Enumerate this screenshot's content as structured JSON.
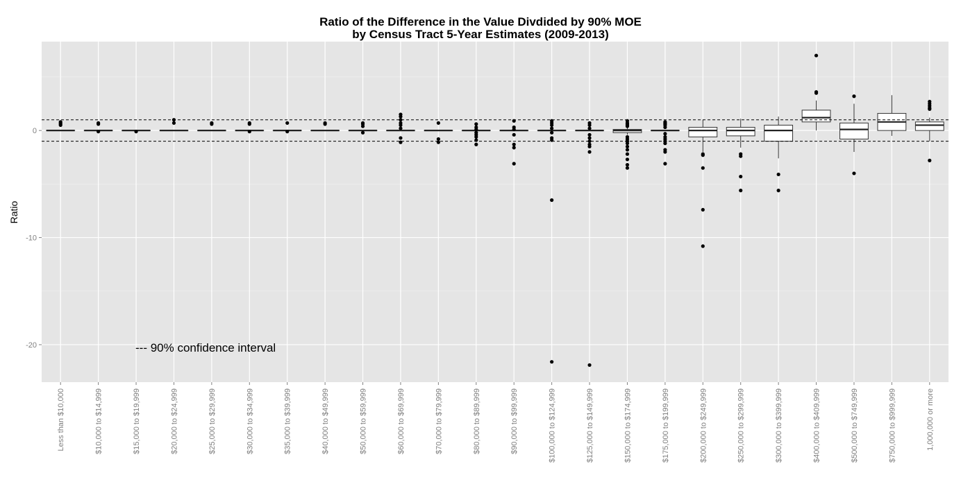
{
  "chart_data": {
    "type": "box",
    "title": "Ratio of the Difference in the Value Divdided by 90% MOE",
    "subtitle": "by Census Tract 5-Year Estimates (2009-2013)",
    "xlabel": "",
    "ylabel": "Ratio",
    "ylim": [
      -23.5,
      8.3
    ],
    "yticks": [
      0,
      -10,
      -20
    ],
    "grid": true,
    "annotation": "--- 90% confidence interval",
    "reference_lines": [
      1,
      -1
    ],
    "categories": [
      "Less than $10,000",
      "$10,000 to $14,999",
      "$15,000 to $19,999",
      "$20,000 to $24,999",
      "$25,000 to $29,999",
      "$30,000 to $34,999",
      "$35,000 to $39,999",
      "$40,000 to $49,999",
      "$50,000 to $59,999",
      "$60,000 to $69,999",
      "$70,000 to $79,999",
      "$80,000 to $89,999",
      "$90,000 to $99,999",
      "$100,000 to $124,999",
      "$125,000 to $149,999",
      "$150,000 to $174,999",
      "$175,000 to $199,999",
      "$200,000 to $249,999",
      "$250,000 to $299,999",
      "$300,000 to $399,999",
      "$400,000 to $409,999",
      "$500,000 to $749,999",
      "$750,000 to $999,999",
      "1,000,000 or more"
    ],
    "boxes": [
      {
        "q1": 0,
        "median": 0,
        "q3": 0,
        "whisker_low": 0,
        "whisker_high": 0,
        "outliers": [
          0.6,
          0.7,
          0.8,
          0.5
        ]
      },
      {
        "q1": 0,
        "median": 0,
        "q3": 0,
        "whisker_low": 0,
        "whisker_high": 0,
        "outliers": [
          0.6,
          0.7,
          -0.1
        ]
      },
      {
        "q1": 0,
        "median": 0,
        "q3": 0,
        "whisker_low": 0,
        "whisker_high": 0,
        "outliers": [
          -0.1
        ]
      },
      {
        "q1": 0,
        "median": 0,
        "q3": 0,
        "whisker_low": 0,
        "whisker_high": 0,
        "outliers": [
          1.0,
          0.7
        ]
      },
      {
        "q1": 0,
        "median": 0,
        "q3": 0,
        "whisker_low": 0,
        "whisker_high": 0,
        "outliers": [
          0.7,
          0.6
        ]
      },
      {
        "q1": 0,
        "median": 0,
        "q3": 0,
        "whisker_low": 0,
        "whisker_high": 0,
        "outliers": [
          0.6,
          0.7,
          -0.1
        ]
      },
      {
        "q1": 0,
        "median": 0,
        "q3": 0,
        "whisker_low": 0,
        "whisker_high": 0,
        "outliers": [
          0.7,
          -0.1
        ]
      },
      {
        "q1": 0,
        "median": 0,
        "q3": 0,
        "whisker_low": 0,
        "whisker_high": 0,
        "outliers": [
          0.6,
          0.7
        ]
      },
      {
        "q1": 0,
        "median": 0,
        "q3": 0,
        "whisker_low": 0,
        "whisker_high": 0,
        "outliers": [
          0.4,
          0.6,
          0.7,
          -0.2
        ]
      },
      {
        "q1": 0,
        "median": 0,
        "q3": 0,
        "whisker_low": 0,
        "whisker_high": 0,
        "outliers": [
          1.5,
          1.3,
          1.0,
          0.7,
          0.5,
          0.2,
          -0.7,
          -1.1
        ]
      },
      {
        "q1": 0,
        "median": 0,
        "q3": 0,
        "whisker_low": 0,
        "whisker_high": 0,
        "outliers": [
          0.7,
          -0.8,
          -1.1
        ]
      },
      {
        "q1": 0,
        "median": 0,
        "q3": 0,
        "whisker_low": 0,
        "whisker_high": 0,
        "outliers": [
          0.6,
          0.3,
          0.1,
          -0.2,
          -0.4,
          -0.6,
          -0.9,
          -1.3
        ]
      },
      {
        "q1": 0,
        "median": 0,
        "q3": 0,
        "whisker_low": 0,
        "whisker_high": 0,
        "outliers": [
          0.9,
          0.3,
          0.1,
          -0.4,
          -1.3,
          -1.6,
          -3.1
        ]
      },
      {
        "q1": 0,
        "median": 0,
        "q3": 0,
        "whisker_low": 0,
        "whisker_high": 0,
        "outliers": [
          0.9,
          0.7,
          0.5,
          0.2,
          -0.2,
          -0.7,
          -0.9,
          -6.5,
          -21.6
        ]
      },
      {
        "q1": 0,
        "median": 0,
        "q3": 0,
        "whisker_low": 0,
        "whisker_high": 0,
        "outliers": [
          0.7,
          0.5,
          0.2,
          -0.4,
          -0.7,
          -1.0,
          -1.3,
          -1.5,
          -2.0,
          -21.9
        ]
      },
      {
        "q1": -0.2,
        "median": 0,
        "q3": 0.1,
        "whisker_low": -0.4,
        "whisker_high": 0.3,
        "outliers": [
          0.9,
          0.7,
          0.6,
          0.5,
          0.4,
          -0.6,
          -0.8,
          -1.0,
          -1.2,
          -1.5,
          -1.8,
          -2.2,
          -2.7,
          -3.2,
          -3.5
        ]
      },
      {
        "q1": 0,
        "median": 0,
        "q3": 0,
        "whisker_low": 0,
        "whisker_high": 0,
        "outliers": [
          0.8,
          0.7,
          0.6,
          0.5,
          0.3,
          -0.3,
          -0.6,
          -0.8,
          -1.0,
          -1.2,
          -1.8,
          -2.0,
          -3.1
        ]
      },
      {
        "q1": -0.6,
        "median": 0,
        "q3": 0.3,
        "whisker_low": -2.0,
        "whisker_high": 1.0,
        "outliers": [
          -2.2,
          -2.3,
          -3.5,
          -7.4,
          -10.8
        ]
      },
      {
        "q1": -0.5,
        "median": 0,
        "q3": 0.3,
        "whisker_low": -1.6,
        "whisker_high": 1.1,
        "outliers": [
          -2.2,
          -2.4,
          -4.3,
          -5.6
        ]
      },
      {
        "q1": -1.0,
        "median": 0,
        "q3": 0.5,
        "whisker_low": -2.6,
        "whisker_high": 1.3,
        "outliers": [
          -4.1,
          -5.6
        ]
      },
      {
        "q1": 0.8,
        "median": 1.2,
        "q3": 1.9,
        "whisker_low": 0,
        "whisker_high": 2.8,
        "outliers": [
          3.5,
          3.6,
          7.0
        ]
      },
      {
        "q1": -0.8,
        "median": 0.1,
        "q3": 0.7,
        "whisker_low": -2.0,
        "whisker_high": 2.5,
        "outliers": [
          3.2,
          -4.0
        ]
      },
      {
        "q1": 0,
        "median": 0.8,
        "q3": 1.6,
        "whisker_low": -0.5,
        "whisker_high": 3.3,
        "outliers": []
      },
      {
        "q1": 0,
        "median": 0.5,
        "q3": 0.8,
        "whisker_low": -1.0,
        "whisker_high": 1.2,
        "outliers": [
          2.7,
          2.5,
          2.3,
          2.1,
          2.0,
          -2.8
        ]
      }
    ]
  }
}
